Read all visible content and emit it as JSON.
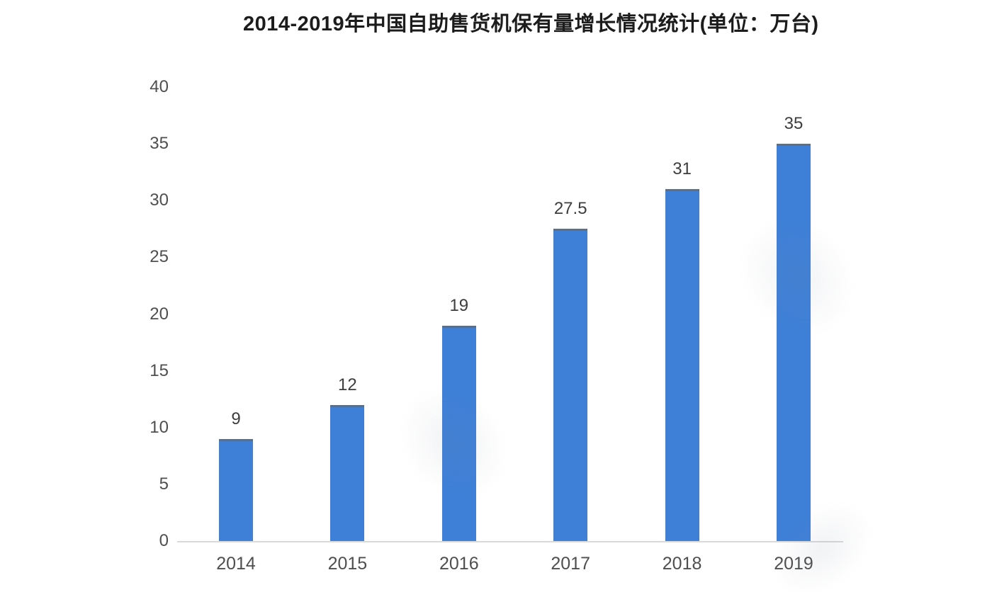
{
  "chart_data": {
    "type": "bar",
    "title": "2014-2019年中国自助售货机保有量增长情况统计(单位：万台)",
    "categories": [
      "2014",
      "2015",
      "2016",
      "2017",
      "2018",
      "2019"
    ],
    "values": [
      9,
      12,
      19,
      27.5,
      31,
      35
    ],
    "value_labels": [
      "9",
      "12",
      "19",
      "27.5",
      "31",
      "35"
    ],
    "yticks": [
      0,
      5,
      10,
      15,
      20,
      25,
      30,
      35,
      40
    ],
    "ylim": [
      0,
      40
    ],
    "xlabel": "",
    "ylabel": "",
    "grid": false,
    "legend_position": "none",
    "bar_color": "#3e80d8",
    "bar_top_edge_color": "#5f6e81",
    "axis_line_color": "#d9d9d9",
    "title_color": "#1c1c1c",
    "tick_label_color": "#4f4f4f",
    "value_label_color": "#3d3d3d",
    "background_color": "#ffffff"
  }
}
